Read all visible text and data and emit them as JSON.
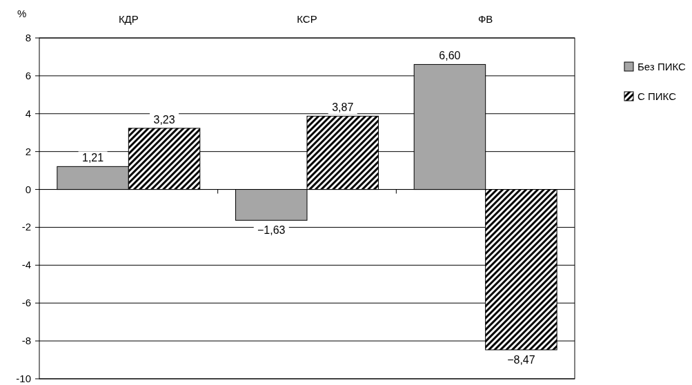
{
  "chart_data": {
    "type": "bar",
    "ylabel": "%",
    "categories": [
      "КДР",
      "КСР",
      "ФВ"
    ],
    "series": [
      {
        "name": "Без ПИКС",
        "color": "#a6a6a6",
        "values": [
          1.21,
          -1.63,
          6.6
        ],
        "value_labels": [
          "1,21",
          "−1,63",
          "6,60"
        ]
      },
      {
        "name": "С ПИКС",
        "color": "#000000",
        "values": [
          3.23,
          3.87,
          -8.47
        ],
        "value_labels": [
          "3,23",
          "3,87",
          "−8,47"
        ]
      }
    ],
    "ylim": [
      -10,
      8
    ],
    "yticks": [
      -10,
      -8,
      -6,
      -4,
      -2,
      0,
      2,
      4,
      6,
      8
    ],
    "grid": "y",
    "legend": "top right"
  }
}
